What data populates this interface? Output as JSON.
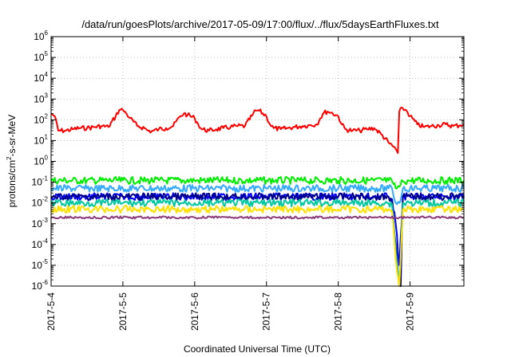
{
  "chart_data": {
    "type": "line",
    "title": "/data/run/goesPlots/archive/2017-05-09/17:00/flux/../flux/5daysEarthFluxes.txt",
    "xlabel": "Coordinated Universal Time (UTC)",
    "ylabel_parts": [
      "protons/cm",
      "2",
      "-s-sr-MeV"
    ],
    "x_unit": "days since 2017-5-4 00:00",
    "xlim": [
      0,
      5.75
    ],
    "ylim": [
      1e-06,
      1000000.0
    ],
    "yscale": "log",
    "grid": true,
    "xticks": [
      {
        "value": 0,
        "label": "2017-5-4"
      },
      {
        "value": 1,
        "label": "2017-5-5"
      },
      {
        "value": 2,
        "label": "2017-5-6"
      },
      {
        "value": 3,
        "label": "2017-5-7"
      },
      {
        "value": 4,
        "label": "2017-5-8"
      },
      {
        "value": 5,
        "label": "2017-5-9"
      }
    ],
    "yticks": [
      {
        "value": 1e-06,
        "base": "10",
        "exp": "-6"
      },
      {
        "value": 1e-05,
        "base": "10",
        "exp": "-5"
      },
      {
        "value": 0.0001,
        "base": "10",
        "exp": "-4"
      },
      {
        "value": 0.001,
        "base": "10",
        "exp": "-3"
      },
      {
        "value": 0.01,
        "base": "10",
        "exp": "-2"
      },
      {
        "value": 0.1,
        "base": "10",
        "exp": "-1"
      },
      {
        "value": 1,
        "base": "10",
        "exp": "0"
      },
      {
        "value": 10,
        "base": "10",
        "exp": "1"
      },
      {
        "value": 100,
        "base": "10",
        "exp": "2"
      },
      {
        "value": 1000,
        "base": "10",
        "exp": "3"
      },
      {
        "value": 10000,
        "base": "10",
        "exp": "4"
      },
      {
        "value": 100000,
        "base": "10",
        "exp": "5"
      },
      {
        "value": 1000000,
        "base": "10",
        "exp": "6"
      }
    ],
    "series": [
      {
        "color": "#ff0000",
        "x": [
          0,
          0.05,
          0.1,
          0.2,
          0.3,
          0.4,
          0.5,
          0.6,
          0.7,
          0.8,
          0.9,
          0.95,
          1.0,
          1.05,
          1.1,
          1.2,
          1.3,
          1.35,
          1.4,
          1.5,
          1.6,
          1.7,
          1.8,
          1.85,
          1.9,
          2.0,
          2.05,
          2.1,
          2.2,
          2.3,
          2.4,
          2.5,
          2.6,
          2.7,
          2.8,
          2.85,
          2.9,
          3.0,
          3.05,
          3.1,
          3.2,
          3.3,
          3.4,
          3.5,
          3.6,
          3.7,
          3.75,
          3.8,
          3.85,
          3.9,
          4.0,
          4.05,
          4.1,
          4.2,
          4.3,
          4.4,
          4.5,
          4.6,
          4.7,
          4.8,
          4.82,
          4.83,
          4.85,
          4.9,
          4.95,
          5.0,
          5.1,
          5.2,
          5.3,
          5.4,
          5.5,
          5.6,
          5.7,
          5.75
        ],
        "y": [
          200,
          150,
          30,
          30,
          35,
          40,
          40,
          45,
          50,
          45,
          150,
          300,
          300,
          200,
          120,
          50,
          40,
          30,
          28,
          35,
          40,
          50,
          150,
          200,
          170,
          120,
          60,
          35,
          30,
          35,
          40,
          45,
          50,
          50,
          160,
          280,
          270,
          150,
          60,
          40,
          35,
          40,
          45,
          50,
          55,
          60,
          120,
          220,
          250,
          220,
          150,
          60,
          35,
          30,
          30,
          35,
          40,
          20,
          8,
          4,
          3,
          2.5,
          250,
          350,
          280,
          150,
          60,
          45,
          50,
          55,
          60,
          50,
          55,
          60
        ]
      },
      {
        "color": "#00ee00",
        "x": [
          0,
          0.5,
          1,
          1.5,
          2,
          2.5,
          3,
          3.5,
          4,
          4.5,
          4.7,
          4.75,
          4.77,
          4.8,
          4.85,
          4.9,
          5.0,
          5.5,
          5.75
        ],
        "y": [
          0.12,
          0.12,
          0.12,
          0.12,
          0.12,
          0.12,
          0.12,
          0.12,
          0.12,
          0.12,
          0.12,
          0.11,
          0.08,
          0.05,
          0.06,
          0.11,
          0.12,
          0.12,
          0.12
        ]
      },
      {
        "color": "#33aaff",
        "x": [
          0,
          0.5,
          1,
          1.5,
          2,
          2.5,
          3,
          3.5,
          4,
          4.5,
          4.7,
          4.75,
          4.8,
          4.85,
          4.9,
          5.0,
          5.5,
          5.75
        ],
        "y": [
          0.05,
          0.05,
          0.05,
          0.05,
          0.05,
          0.05,
          0.05,
          0.05,
          0.05,
          0.05,
          0.05,
          0.05,
          0.01,
          0.01,
          0.05,
          0.05,
          0.05,
          0.05
        ]
      },
      {
        "color": "#0000ff",
        "x": [
          0,
          0.5,
          1,
          1.5,
          2,
          2.5,
          3,
          3.5,
          4,
          4.5,
          4.7,
          4.75,
          4.8,
          4.85,
          4.9,
          5.0,
          5.5,
          5.75
        ],
        "y": [
          0.02,
          0.02,
          0.02,
          0.02,
          0.02,
          0.02,
          0.02,
          0.02,
          0.02,
          0.02,
          0.02,
          0.015,
          0.001,
          1e-05,
          0.02,
          0.02,
          0.02,
          0.02
        ]
      },
      {
        "color": "#00008b",
        "x": [
          0,
          0.5,
          1,
          1.5,
          2,
          2.5,
          3,
          3.5,
          4,
          4.5,
          4.7,
          4.75,
          4.8,
          4.85,
          4.87,
          4.9,
          5.0,
          5.5,
          5.75
        ],
        "y": [
          0.02,
          0.02,
          0.02,
          0.02,
          0.02,
          0.02,
          0.02,
          0.02,
          0.02,
          0.02,
          0.02,
          0.01,
          0.0001,
          1e-06,
          1e-06,
          0.02,
          0.02,
          0.02,
          0.02
        ]
      },
      {
        "color": "#00c8a0",
        "x": [
          0,
          0.5,
          1,
          1.5,
          2,
          2.5,
          3,
          3.5,
          4,
          4.5,
          4.7,
          4.75,
          4.8,
          4.85,
          4.9,
          5.0,
          5.5,
          5.75
        ],
        "y": [
          0.01,
          0.01,
          0.01,
          0.01,
          0.01,
          0.01,
          0.01,
          0.01,
          0.01,
          0.01,
          0.01,
          0.008,
          5e-05,
          1e-06,
          0.01,
          0.01,
          0.01,
          0.01
        ]
      },
      {
        "color": "#ffe000",
        "x": [
          0,
          0.5,
          1,
          1.5,
          2,
          2.5,
          3,
          3.5,
          4,
          4.5,
          4.7,
          4.75,
          4.8,
          4.85,
          4.9,
          5.0,
          5.5,
          5.75
        ],
        "y": [
          0.005,
          0.005,
          0.005,
          0.005,
          0.005,
          0.005,
          0.005,
          0.005,
          0.005,
          0.005,
          0.005,
          0.004,
          2e-05,
          1e-06,
          0.005,
          0.005,
          0.005,
          0.005
        ]
      },
      {
        "color": "#8b3a7a",
        "x": [
          0,
          0.5,
          1,
          1.5,
          2,
          2.5,
          3,
          3.5,
          4,
          4.5,
          4.7,
          5.0,
          5.5,
          5.75
        ],
        "y": [
          0.002,
          0.002,
          0.002,
          0.002,
          0.002,
          0.002,
          0.002,
          0.002,
          0.002,
          0.002,
          0.002,
          0.002,
          0.002,
          0.002
        ]
      }
    ]
  }
}
